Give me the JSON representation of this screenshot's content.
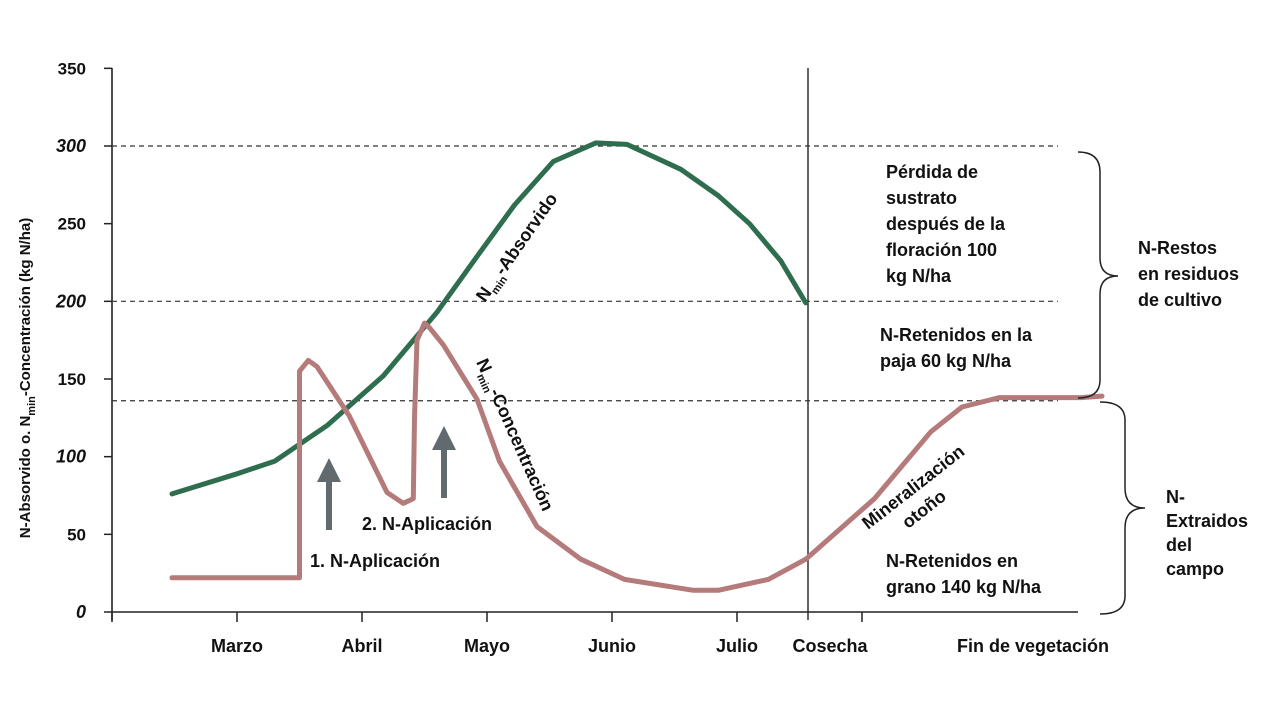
{
  "chart_data": {
    "type": "line",
    "ylabel": {
      "part1": "N-Absorvido o. N",
      "sub": "min",
      "part2": "-Concentración (kg N/ha)"
    },
    "ylim": [
      0,
      350
    ],
    "yticks": [
      {
        "value": 0,
        "label": "0"
      },
      {
        "value": 50,
        "label": "50"
      },
      {
        "value": 100,
        "label": "100"
      },
      {
        "value": 150,
        "label": "150"
      },
      {
        "value": 200,
        "label": "200"
      },
      {
        "value": 250,
        "label": "250"
      },
      {
        "value": 300,
        "label": "300"
      },
      {
        "value": 350,
        "label": "350"
      }
    ],
    "x_categories": [
      "Marzo",
      "Abril",
      "Mayo",
      "Junio",
      "Julio",
      "Cosecha",
      "Fin de vegetación"
    ],
    "reference_lines": [
      300,
      200,
      136
    ],
    "series": [
      {
        "name": "N min -Absorvido",
        "label_main": "N",
        "label_sub": "min",
        "label_rest": "-Absorvido",
        "color": "#2e6e4e",
        "points": [
          [
            0.48,
            76
          ],
          [
            1.0,
            89
          ],
          [
            1.3,
            97
          ],
          [
            1.72,
            120
          ],
          [
            2.17,
            152
          ],
          [
            2.6,
            193
          ],
          [
            2.93,
            230
          ],
          [
            3.22,
            262
          ],
          [
            3.53,
            290
          ],
          [
            3.87,
            302
          ],
          [
            4.12,
            301
          ],
          [
            4.55,
            285
          ],
          [
            4.85,
            268
          ],
          [
            5.1,
            250
          ],
          [
            5.35,
            226
          ],
          [
            5.55,
            199
          ]
        ]
      },
      {
        "name": "N min -Concentración",
        "label_main": "N",
        "label_sub": "min",
        "label_rest": "-Concentración",
        "color": "#b57a7a",
        "points": [
          [
            0.48,
            22
          ],
          [
            1.5,
            22
          ],
          [
            1.5,
            155
          ],
          [
            1.57,
            162
          ],
          [
            1.64,
            158
          ],
          [
            1.9,
            126
          ],
          [
            2.2,
            77
          ],
          [
            2.33,
            70
          ],
          [
            2.41,
            73
          ],
          [
            2.42,
            125
          ],
          [
            2.44,
            175
          ],
          [
            2.5,
            186
          ],
          [
            2.54,
            183
          ],
          [
            2.65,
            172
          ],
          [
            2.92,
            137
          ],
          [
            3.1,
            97
          ],
          [
            3.4,
            55
          ],
          [
            3.75,
            34
          ],
          [
            4.1,
            21
          ],
          [
            4.65,
            14
          ],
          [
            4.85,
            14
          ],
          [
            5.25,
            21
          ],
          [
            5.55,
            34
          ],
          [
            6.1,
            73
          ],
          [
            6.55,
            116
          ],
          [
            6.8,
            132
          ],
          [
            7.1,
            138
          ],
          [
            7.75,
            138
          ],
          [
            7.92,
            139
          ]
        ]
      }
    ],
    "annotations": {
      "application_1": "1. N-Aplicación",
      "application_2": "2. N-Aplicación",
      "mineralization_line1": "Mineralización",
      "mineralization_line2": "otoño",
      "loss_lines": [
        "Pérdida de",
        "sustrato",
        "después de la",
        "floración 100",
        "kg N/ha"
      ],
      "straw_lines": [
        "N-Retenidos en la",
        "paja 60 kg N/ha"
      ],
      "grain_lines": [
        "N-Retenidos en",
        "grano 140 kg N/ha"
      ],
      "residues_lines": [
        "N-Restos",
        "en residuos",
        "de cultivo"
      ],
      "extracted_lines": [
        "N-",
        "Extraidos",
        "del",
        "campo"
      ]
    },
    "colors": {
      "absorbed": "#2e6e4e",
      "concentration": "#b57a7a",
      "arrow": "#616a6f",
      "axis": "#222222"
    }
  }
}
